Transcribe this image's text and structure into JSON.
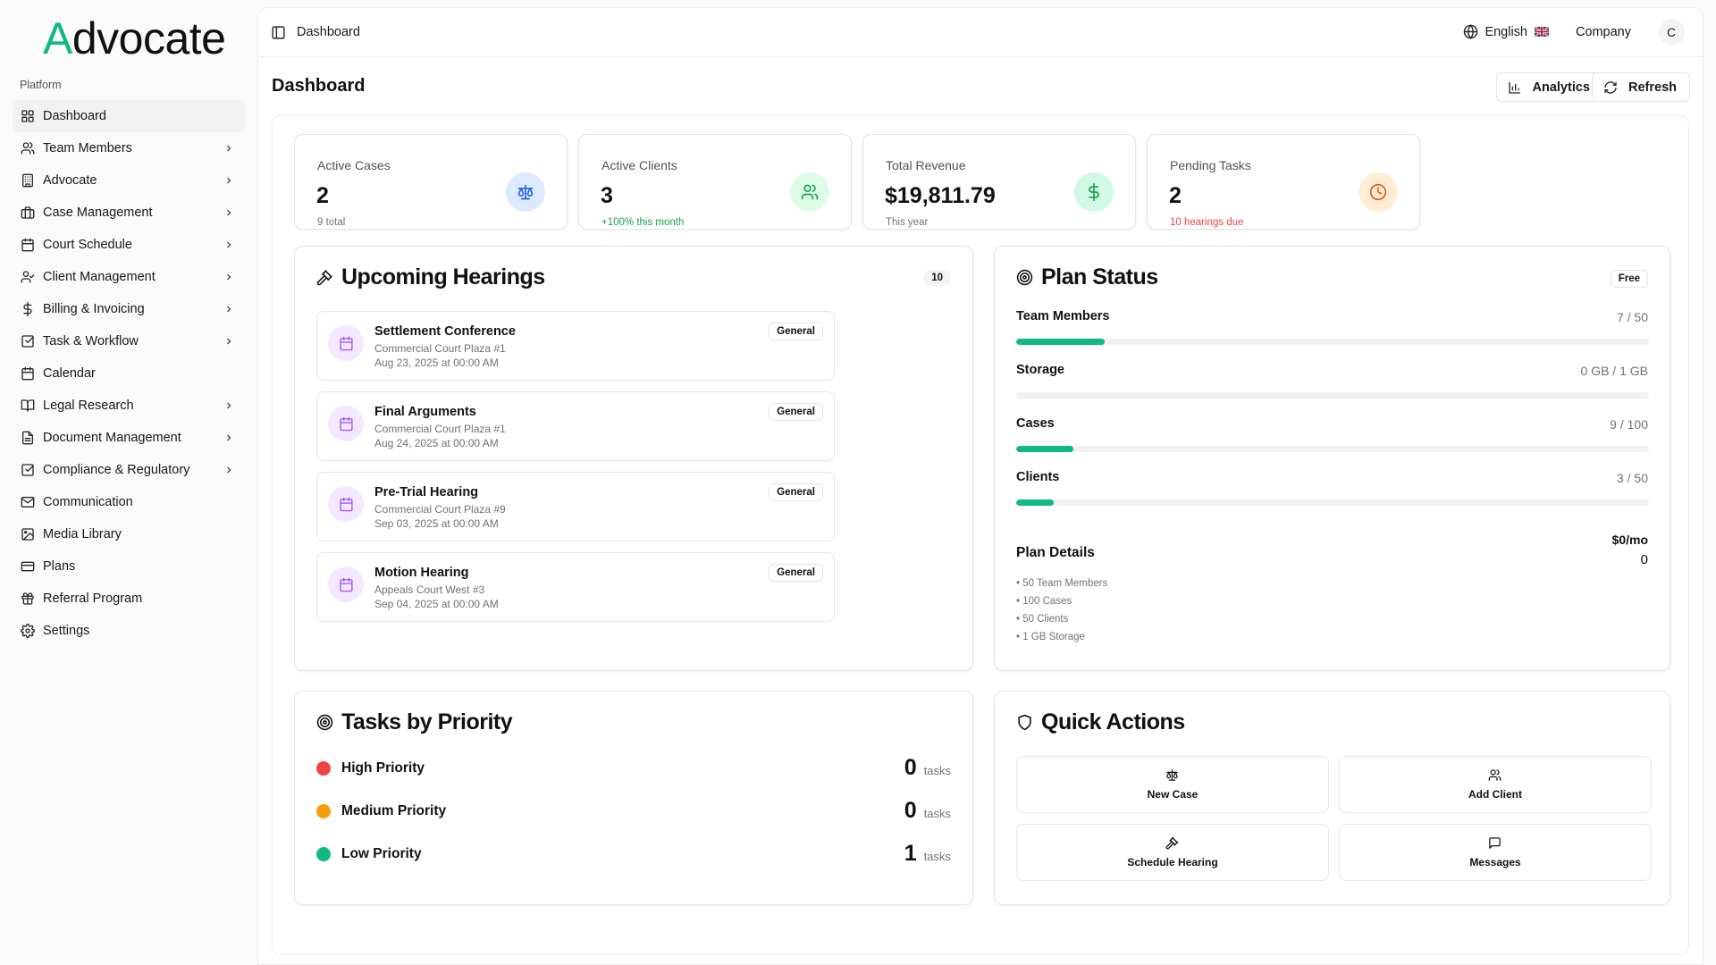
{
  "app": {
    "logo_first": "A",
    "logo_rest": "dvocate"
  },
  "sidebar": {
    "section_label": "Platform",
    "items": [
      {
        "label": "Dashboard",
        "icon": "grid-icon",
        "chevron": false,
        "active": true
      },
      {
        "label": "Team Members",
        "icon": "users-icon",
        "chevron": true
      },
      {
        "label": "Advocate",
        "icon": "building-icon",
        "chevron": true
      },
      {
        "label": "Case Management",
        "icon": "briefcase-icon",
        "chevron": true
      },
      {
        "label": "Court Schedule",
        "icon": "calendar-icon",
        "chevron": true
      },
      {
        "label": "Client Management",
        "icon": "user-check-icon",
        "chevron": true
      },
      {
        "label": "Billing & Invoicing",
        "icon": "dollar-icon",
        "chevron": true
      },
      {
        "label": "Task & Workflow",
        "icon": "checkbox-icon",
        "chevron": true
      },
      {
        "label": "Calendar",
        "icon": "calendar-icon",
        "chevron": false
      },
      {
        "label": "Legal Research",
        "icon": "book-icon",
        "chevron": true
      },
      {
        "label": "Document Management",
        "icon": "file-icon",
        "chevron": true
      },
      {
        "label": "Compliance & Regulatory",
        "icon": "checkbox-icon",
        "chevron": true
      },
      {
        "label": "Communication",
        "icon": "mail-icon",
        "chevron": false
      },
      {
        "label": "Media Library",
        "icon": "image-icon",
        "chevron": false
      },
      {
        "label": "Plans",
        "icon": "card-icon",
        "chevron": false
      },
      {
        "label": "Referral Program",
        "icon": "gift-icon",
        "chevron": false
      },
      {
        "label": "Settings",
        "icon": "gear-icon",
        "chevron": false
      }
    ]
  },
  "header": {
    "breadcrumb": "Dashboard",
    "language": "English",
    "company": "Company",
    "avatar_initial": "C"
  },
  "page": {
    "title": "Dashboard",
    "analytics_label": "Analytics",
    "refresh_label": "Refresh"
  },
  "stats": [
    {
      "label": "Active Cases",
      "value": "2",
      "sub": "9 total",
      "icon": "scale-icon",
      "color": "#2563eb",
      "bg": "#dbeafe"
    },
    {
      "label": "Active Clients",
      "value": "3",
      "sub": "+100% this month",
      "icon": "users-icon",
      "color": "#16a34a",
      "bg": "#dcfce7"
    },
    {
      "label": "Total Revenue",
      "value": "$19,811.79",
      "sub": "This year",
      "icon": "dollar-icon",
      "color": "#16a34a",
      "bg": "#d1fae5"
    },
    {
      "label": "Pending Tasks",
      "value": "2",
      "sub": "10 hearings due",
      "icon": "clock-icon",
      "color": "#ea580c",
      "bg": "#ffedd5"
    }
  ],
  "hearings": {
    "title": "Upcoming Hearings",
    "count": "10",
    "items": [
      {
        "title": "Settlement Conference",
        "location": "Commercial Court Plaza #1",
        "date": "Aug 23, 2025 at 00:00 AM",
        "badge": "General"
      },
      {
        "title": "Final Arguments",
        "location": "Commercial Court Plaza #1",
        "date": "Aug 24, 2025 at 00:00 AM",
        "badge": "General"
      },
      {
        "title": "Pre-Trial Hearing",
        "location": "Commercial Court Plaza #9",
        "date": "Sep 03, 2025 at 00:00 AM",
        "badge": "General"
      },
      {
        "title": "Motion Hearing",
        "location": "Appeals Court West #3",
        "date": "Sep 04, 2025 at 00:00 AM",
        "badge": "General"
      }
    ]
  },
  "plan": {
    "title": "Plan Status",
    "badge": "Free",
    "usage": [
      {
        "label": "Team Members",
        "value": "7 / 50",
        "fraction": 0.14
      },
      {
        "label": "Storage",
        "value": "0 GB / 1 GB",
        "fraction": 0
      },
      {
        "label": "Cases",
        "value": "9 / 100",
        "fraction": 0.09
      },
      {
        "label": "Clients",
        "value": "3 / 50",
        "fraction": 0.06
      }
    ],
    "details_label": "Plan Details",
    "price": "$0/mo",
    "price_sub": "0",
    "features": [
      "• 50 Team Members",
      "• 100 Cases",
      "• 50 Clients",
      "• 1 GB Storage"
    ]
  },
  "tasks": {
    "title": "Tasks by Priority",
    "items": [
      {
        "label": "High Priority",
        "count": "0",
        "unit": "tasks",
        "color": "#ef4444"
      },
      {
        "label": "Medium Priority",
        "count": "0",
        "unit": "tasks",
        "color": "#f59e0b"
      },
      {
        "label": "Low Priority",
        "count": "1",
        "unit": "tasks",
        "color": "#10b981"
      }
    ]
  },
  "quick_actions": {
    "title": "Quick Actions",
    "items": [
      {
        "label": "New Case",
        "icon": "scale-icon"
      },
      {
        "label": "Add Client",
        "icon": "users-icon"
      },
      {
        "label": "Schedule Hearing",
        "icon": "gavel-icon"
      },
      {
        "label": "Messages",
        "icon": "message-icon"
      }
    ]
  }
}
